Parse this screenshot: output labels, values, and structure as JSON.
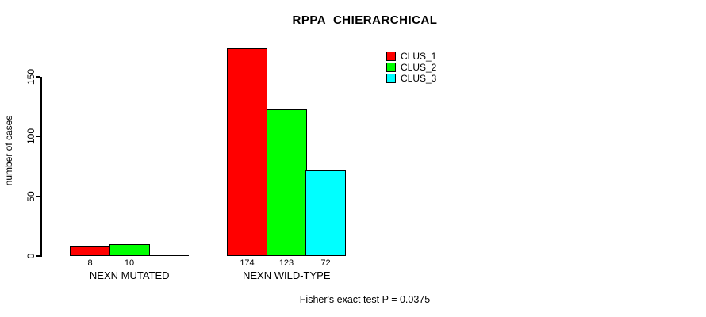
{
  "title": "RPPA_CHIERARCHICAL",
  "footer": "Fisher's exact test P = 0.0375",
  "chart_data": {
    "type": "bar",
    "grouped": true,
    "title": "RPPA_CHIERARCHICAL",
    "categories": [
      "NEXN MUTATED",
      "NEXN WILD-TYPE"
    ],
    "series": [
      {
        "name": "CLUS_1",
        "color": "#ff0000",
        "values": [
          8,
          174
        ]
      },
      {
        "name": "CLUS_2",
        "color": "#00ff00",
        "values": [
          10,
          123
        ]
      },
      {
        "name": "CLUS_3",
        "color": "#00ffff",
        "values": [
          0,
          72
        ]
      }
    ],
    "xlabel": "",
    "ylabel": "number of cases",
    "yticks": [
      0,
      50,
      100,
      150
    ],
    "ylim": [
      0,
      174
    ],
    "grid": false,
    "bar_value_labels": [
      [
        "8",
        "10",
        ""
      ],
      [
        "174",
        "123",
        "72"
      ]
    ],
    "legend_entries": [
      "CLUS_1",
      "CLUS_2",
      "CLUS_3"
    ],
    "legend_position": "top-right",
    "annotation": "Fisher's exact test P = 0.0375"
  }
}
